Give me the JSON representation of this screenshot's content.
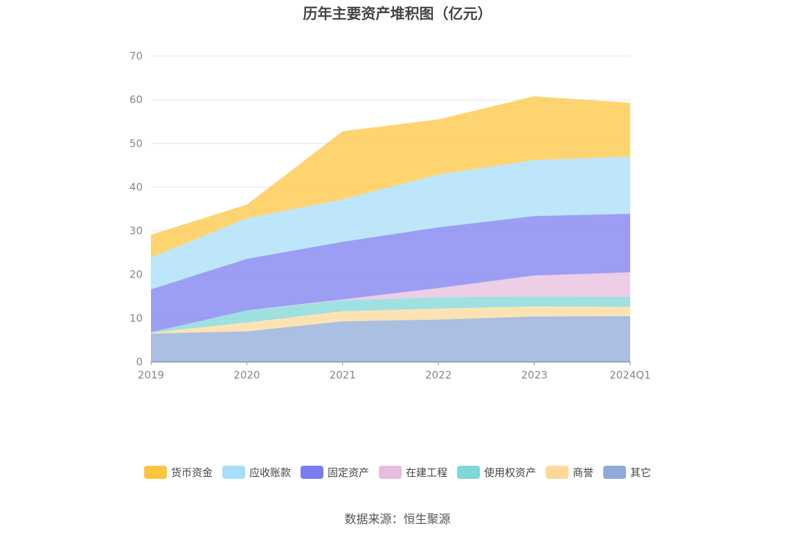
{
  "chart_data": {
    "type": "area",
    "title": "历年主要资产堆积图（亿元）",
    "x": [
      "2019",
      "2020",
      "2021",
      "2022",
      "2023",
      "2024Q1"
    ],
    "ylim": [
      0,
      70
    ],
    "yticks": [
      0,
      10,
      20,
      30,
      40,
      50,
      60,
      70
    ],
    "stacked": true,
    "grid": true,
    "legend_position": "bottom",
    "series": [
      {
        "name": "其它",
        "color": "#8eaad8",
        "values": [
          6.5,
          7.0,
          9.3,
          9.7,
          10.4,
          10.5
        ]
      },
      {
        "name": "商誉",
        "color": "#fcd99a",
        "values": [
          0.2,
          2.0,
          2.3,
          2.5,
          2.3,
          2.1
        ]
      },
      {
        "name": "使用权资产",
        "color": "#7fd7d7",
        "values": [
          0.1,
          2.8,
          2.5,
          2.6,
          2.3,
          2.3
        ]
      },
      {
        "name": "在建工程",
        "color": "#e8bcdf",
        "values": [
          0.0,
          0.0,
          0.2,
          2.1,
          4.8,
          5.6
        ]
      },
      {
        "name": "固定资产",
        "color": "#7b7ef0",
        "values": [
          9.8,
          11.8,
          13.2,
          13.9,
          13.6,
          13.4
        ]
      },
      {
        "name": "应收账款",
        "color": "#a7def8",
        "values": [
          7.3,
          9.3,
          9.7,
          12.1,
          12.8,
          13.1
        ]
      },
      {
        "name": "货币资金",
        "color": "#fdc542",
        "values": [
          5.2,
          3.1,
          15.6,
          12.6,
          14.6,
          12.3
        ]
      }
    ]
  },
  "legend_order": [
    "货币资金",
    "应收账款",
    "固定资产",
    "在建工程",
    "使用权资产",
    "商誉",
    "其它"
  ],
  "source_text": "数据来源：恒生聚源"
}
